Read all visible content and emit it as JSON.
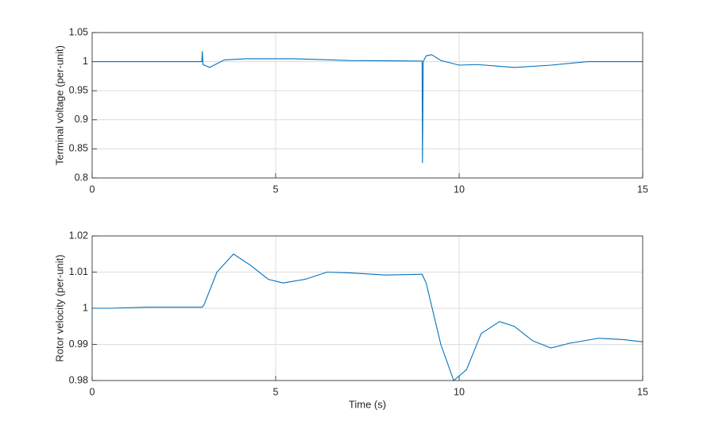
{
  "chart_data": [
    {
      "type": "line",
      "ylabel": "Terminal voltage (per-unit)",
      "x": [
        0,
        2.99,
        3.0,
        3.02,
        3.2,
        3.6,
        4.2,
        5.5,
        7,
        8.99,
        9.0,
        9.02,
        9.1,
        9.25,
        9.5,
        10,
        10.5,
        11.5,
        12.5,
        13.5,
        15
      ],
      "values": [
        1,
        1,
        1.018,
        0.995,
        0.99,
        1.003,
        1.005,
        1.005,
        1.002,
        1.001,
        0.826,
        1,
        1.01,
        1.012,
        1.002,
        0.994,
        0.995,
        0.99,
        0.994,
        1,
        1
      ],
      "color": "#0072bd",
      "xlim": [
        0,
        15
      ],
      "xticks": [
        0,
        5,
        10,
        15
      ],
      "ylim": [
        0.8,
        1.05
      ],
      "yticks": [
        0.8,
        0.85,
        0.9,
        0.95,
        1,
        1.05
      ],
      "grid": true
    },
    {
      "type": "line",
      "ylabel": "Rotor velocity (per-unit)",
      "xlabel": "Time (s)",
      "x": [
        0,
        0.5,
        1.5,
        3,
        3.05,
        3.4,
        3.85,
        4.3,
        4.8,
        5.2,
        5.8,
        6.4,
        7,
        8,
        8.99,
        9.1,
        9.5,
        9.85,
        10.2,
        10.6,
        11.1,
        11.5,
        12,
        12.5,
        13,
        13.8,
        14.5,
        15
      ],
      "values": [
        1,
        1,
        1.0003,
        1.0003,
        1.001,
        1.01,
        1.015,
        1.012,
        1.008,
        1.007,
        1.008,
        1.01,
        1.0098,
        1.0092,
        1.0094,
        1.007,
        0.99,
        0.98,
        0.983,
        0.993,
        0.9963,
        0.995,
        0.991,
        0.989,
        0.9903,
        0.9917,
        0.9913,
        0.9907
      ],
      "color": "#0072bd",
      "xlim": [
        0,
        15
      ],
      "xticks": [
        0,
        5,
        10,
        15
      ],
      "ylim": [
        0.98,
        1.02
      ],
      "yticks": [
        0.98,
        0.99,
        1,
        1.01,
        1.02
      ],
      "grid": true
    }
  ]
}
